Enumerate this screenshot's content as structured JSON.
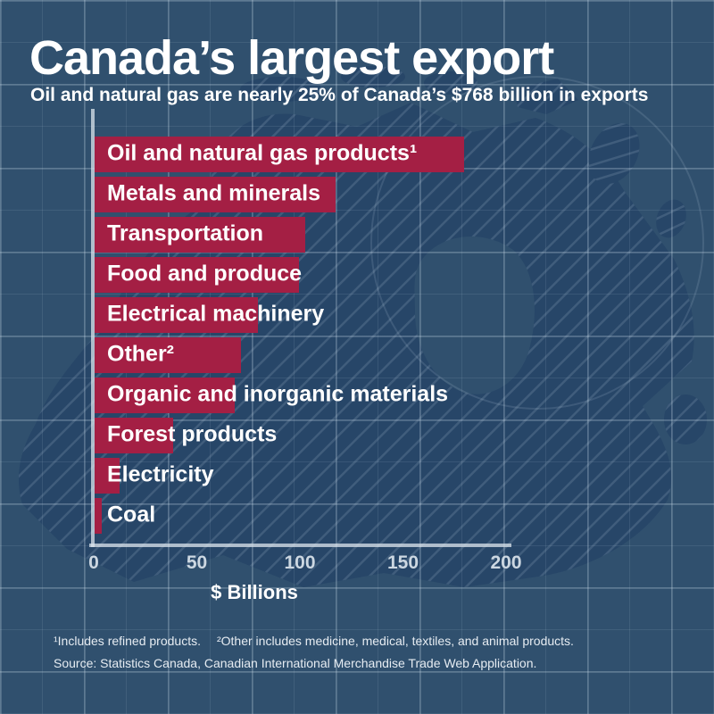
{
  "header": {
    "title": "Canada’s largest export",
    "subtitle": "Oil and natural gas are nearly 25% of Canada’s $768 billion in exports"
  },
  "chart_data": {
    "type": "bar",
    "orientation": "horizontal",
    "title": "Canada’s largest export",
    "subtitle": "Oil and natural gas are nearly 25% of Canada’s $768 billion in exports",
    "categories": [
      "Oil and natural gas products¹",
      "Metals and minerals",
      "Transportation",
      "Food and produce",
      "Electrical machinery",
      "Other²",
      "Organic and inorganic materials",
      "Forest products",
      "Electricity",
      "Coal"
    ],
    "values": [
      179,
      117,
      102,
      99,
      79,
      71,
      68,
      38,
      12,
      3.5
    ],
    "xlabel": "$ Billions",
    "xlim": [
      0,
      200
    ],
    "x_ticks": [
      0,
      50,
      100,
      150,
      200
    ],
    "grid": true,
    "legend": "none",
    "bar_color": "#a41f44"
  },
  "footnotes": {
    "note1": "¹Includes refined products.",
    "note2": "²Other includes medicine, medical, textiles, and animal products.",
    "source": "Source: Statistics Canada, Canadian International Merchandise Trade Web Application."
  },
  "colors": {
    "background": "#30506e",
    "map_fill": "#274668",
    "bar": "#a41f44",
    "axis_line": "#dbe4ec",
    "tick_text": "#ccd7e1",
    "title_text": "#ffffff",
    "footnote_text": "#e6ecf2"
  }
}
